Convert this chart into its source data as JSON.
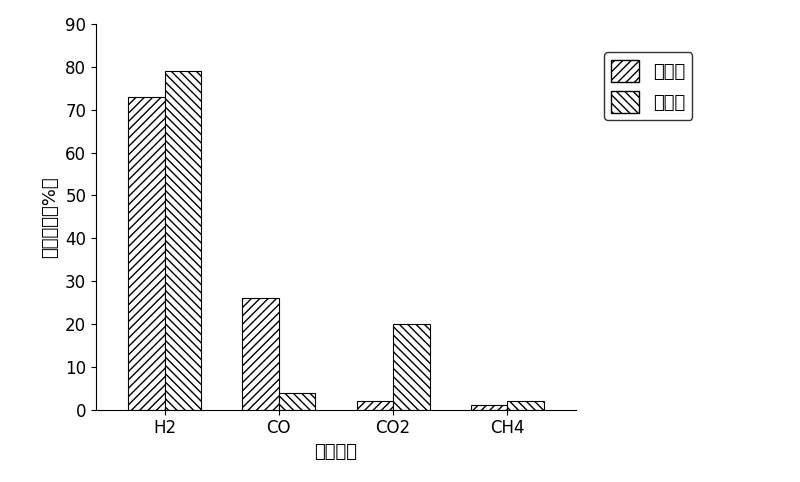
{
  "categories": [
    "H2",
    "CO",
    "CO2",
    "CH4"
  ],
  "before": [
    73,
    26,
    2,
    1
  ],
  "after": [
    79,
    4,
    20,
    2
  ],
  "ylabel": "百分含量（%）",
  "xlabel": "气体组分",
  "ylim": [
    0,
    90
  ],
  "yticks": [
    0,
    10,
    20,
    30,
    40,
    50,
    60,
    70,
    80,
    90
  ],
  "legend_before": "反应前",
  "legend_after": "反应后",
  "bar_width": 0.32,
  "hatch_before": "////",
  "hatch_after": "\\\\\\\\",
  "bar_color": "white",
  "edge_color": "black",
  "label_fontsize": 13,
  "tick_fontsize": 12,
  "legend_fontsize": 13
}
